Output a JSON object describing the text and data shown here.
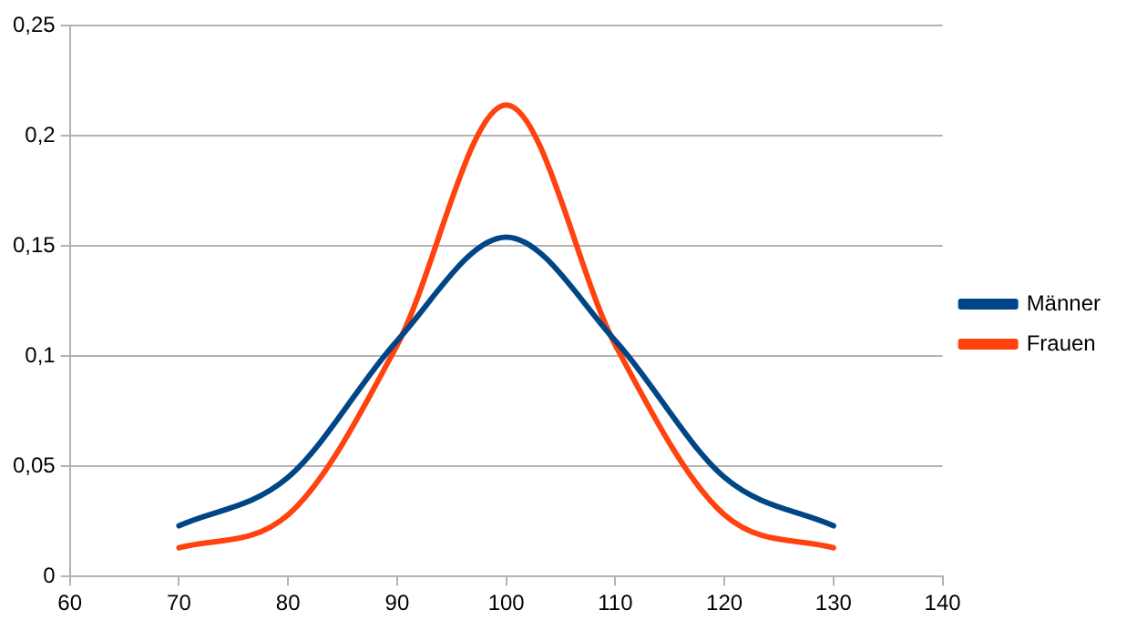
{
  "chart_data": {
    "type": "line",
    "x": [
      70,
      80,
      90,
      100,
      110,
      120,
      130
    ],
    "series": [
      {
        "name": "Männer",
        "color": "#004586",
        "values": [
          0.023,
          0.045,
          0.107,
          0.154,
          0.107,
          0.045,
          0.023
        ]
      },
      {
        "name": "Frauen",
        "color": "#ff420e",
        "values": [
          0.013,
          0.028,
          0.105,
          0.214,
          0.105,
          0.028,
          0.013
        ]
      }
    ],
    "xlim": [
      60,
      140
    ],
    "xticks": [
      60,
      70,
      80,
      90,
      100,
      110,
      120,
      130,
      140
    ],
    "ylim": [
      0,
      0.25
    ],
    "yticks": [
      {
        "value": 0,
        "label": "0"
      },
      {
        "value": 0.05,
        "label": "0,05"
      },
      {
        "value": 0.1,
        "label": "0,1"
      },
      {
        "value": 0.15,
        "label": "0,15"
      },
      {
        "value": 0.2,
        "label": "0,2"
      },
      {
        "value": 0.25,
        "label": "0,25"
      }
    ],
    "grid": "y",
    "legend": "right",
    "marker": "none",
    "line_style": "solid"
  }
}
